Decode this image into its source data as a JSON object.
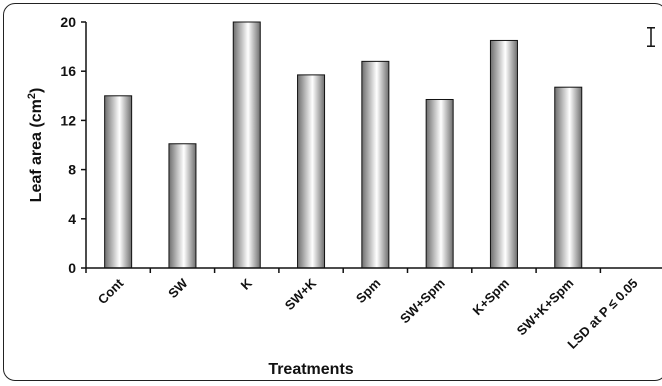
{
  "chart_data": {
    "type": "bar",
    "title": "",
    "xlabel": "Treatments",
    "ylabel_main": "Leaf area (cm",
    "ylabel_sup": "2",
    "ylabel_end": ")",
    "ylim": [
      0,
      20
    ],
    "yticks": [
      "0",
      "4",
      "8",
      "12",
      "16",
      "20"
    ],
    "ytick_values": [
      0,
      4,
      8,
      12,
      16,
      20
    ],
    "categories": [
      "Cont",
      "SW",
      "K",
      "SW+K",
      "Spm",
      "SW+Spm",
      "K+Spm",
      "SW+K+Spm",
      "LSD at P ≤ 0.05"
    ],
    "values": [
      14.0,
      10.1,
      20.0,
      15.7,
      16.8,
      13.7,
      18.5,
      14.7,
      null
    ],
    "lsd": 1.5,
    "grid": false,
    "legend": "none",
    "colors": {
      "bar_dark": "#6e6e6e",
      "bar_light": "#ffffff",
      "axis": "#111111"
    }
  }
}
